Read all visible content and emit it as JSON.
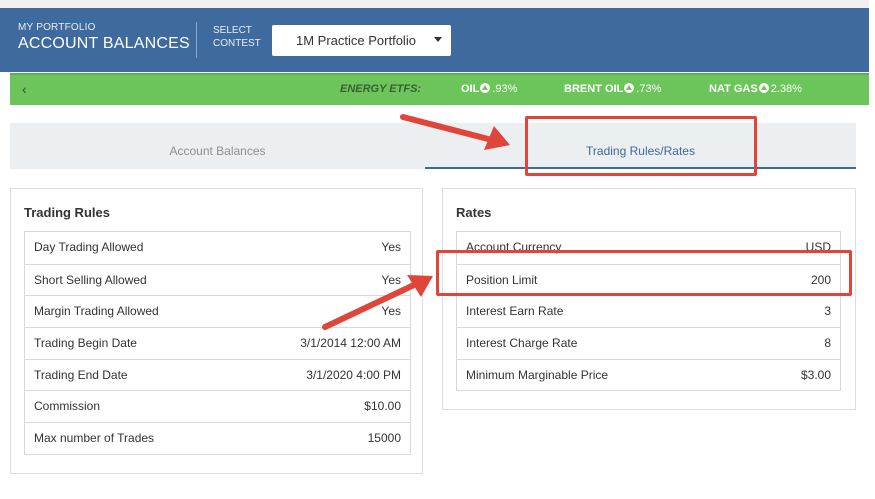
{
  "header": {
    "small_label": "MY PORTFOLIO",
    "title": "ACCOUNT BALANCES",
    "select_label_1": "SELECT",
    "select_label_2": "CONTEST",
    "contest_value": "1M Practice Portfolio"
  },
  "ticker": {
    "back_glyph": "‹",
    "group_label": "ENERGY ETFS:",
    "items": [
      {
        "name": "OIL",
        "change": ".93%"
      },
      {
        "name": "BRENT OIL",
        "change": ".73%"
      },
      {
        "name": "NAT GAS",
        "change": "2.38%"
      }
    ]
  },
  "tabs": [
    {
      "label": "Account Balances"
    },
    {
      "label": "Trading Rules/Rates"
    }
  ],
  "trading_rules": {
    "title": "Trading Rules",
    "rows": [
      {
        "key": "Day Trading Allowed",
        "value": "Yes"
      },
      {
        "key": "Short Selling Allowed",
        "value": "Yes"
      },
      {
        "key": "Margin Trading Allowed",
        "value": "Yes"
      },
      {
        "key": "Trading Begin Date",
        "value": "3/1/2014 12:00 AM"
      },
      {
        "key": "Trading End Date",
        "value": "3/1/2020 4:00 PM"
      },
      {
        "key": "Commission",
        "value": "$10.00"
      },
      {
        "key": "Max number of Trades",
        "value": "15000"
      }
    ]
  },
  "rates": {
    "title": "Rates",
    "rows": [
      {
        "key": "Account Currency",
        "value": "USD"
      },
      {
        "key": "Position Limit",
        "value": "200"
      },
      {
        "key": "Interest Earn Rate",
        "value": "3"
      },
      {
        "key": "Interest Charge Rate",
        "value": "8"
      },
      {
        "key": "Minimum Marginable Price",
        "value": "$3.00"
      }
    ]
  },
  "colors": {
    "header_bg": "#3f6a9e",
    "ticker_bg": "#6cc55a",
    "active_tab": "#3d6a9a",
    "annotation_red": "#e0453a"
  }
}
